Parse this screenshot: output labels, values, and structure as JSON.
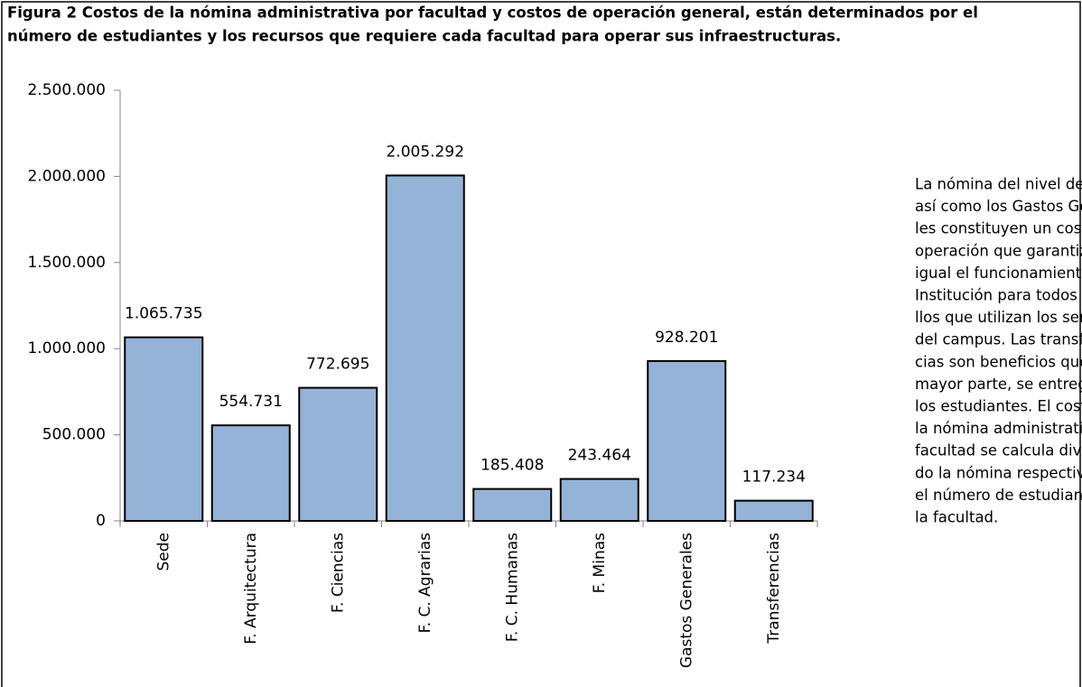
{
  "chart_data": {
    "type": "bar",
    "title_lines": [
      "Figura 2 Costos de la nómina administrativa por facultad y costos de operación general, están determinados por el",
      "número de estudiantes y los recursos que requiere cada facultad para operar sus infraestructuras."
    ],
    "categories": [
      "Sede",
      "F. Arquitectura",
      "F. Ciencias",
      "F. C. Agrarias",
      "F. C. Humanas",
      "F. Minas",
      "Gastos Generales",
      "Transferencias"
    ],
    "values": [
      1065735,
      554731,
      772695,
      2005292,
      185408,
      243464,
      928201,
      117234
    ],
    "value_labels": [
      "1.065.735",
      "554.731",
      "772.695",
      "2.005.292",
      "185.408",
      "243.464",
      "928.201",
      "117.234"
    ],
    "color": "#95b3d7",
    "ylim": [
      0,
      2500000
    ],
    "yticks": [
      0,
      {
        "value": 500000,
        "label": "500.000"
      },
      {
        "value": 1000000,
        "label": "1.000.000"
      },
      {
        "value": 1500000,
        "label": "1.500.000"
      },
      {
        "value": 2000000,
        "label": "2.000.000"
      },
      {
        "value": 2500000,
        "label": "2.500.000"
      }
    ],
    "grid": false,
    "note_lines": [
      "La nómina del nivel de Sede",
      "así como los Gastos Genera-",
      "les constituyen un costo de",
      "operación que garantiza por",
      "igual el funcionamiento de la",
      "Institución para todos aque-",
      "llos que utilizan los servicios",
      "del campus. Las transferen-",
      "cias son beneficios que en su",
      "mayor parte, se entregan a",
      "los estudiantes. El costo de",
      "la nómina administrativa por",
      "facultad se calcula dividien-",
      "do la nómina respectiva por",
      "el número de estudiantes de",
      "la facultad."
    ]
  }
}
